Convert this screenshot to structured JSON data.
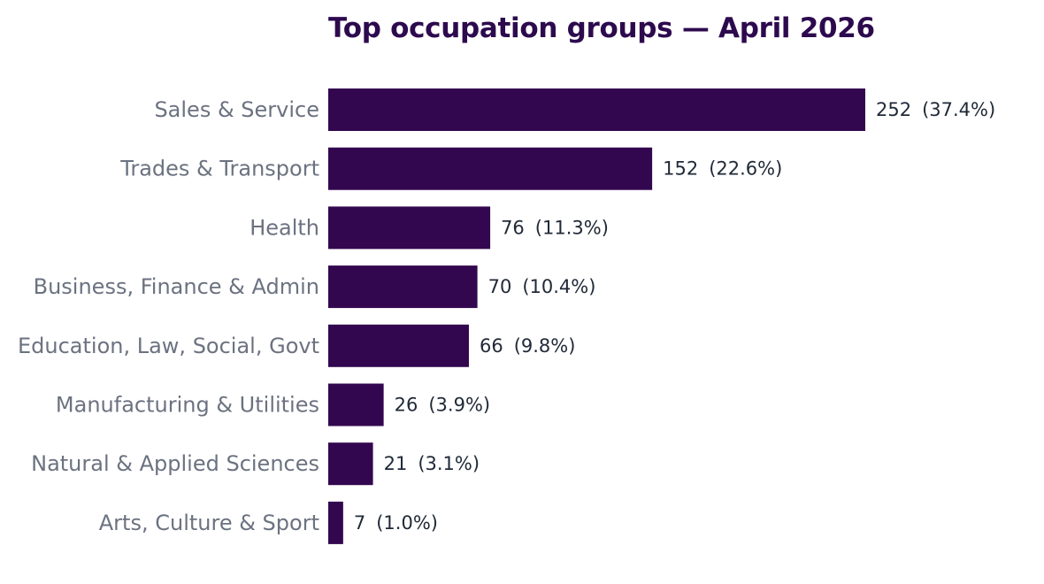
{
  "chart_data": {
    "type": "bar",
    "orientation": "horizontal",
    "title": "Top occupation groups — April 2026",
    "categories": [
      "Sales & Service",
      "Trades & Transport",
      "Health",
      "Business, Finance & Admin",
      "Education, Law, Social, Govt",
      "Manufacturing & Utilities",
      "Natural & Applied Sciences",
      "Arts, Culture & Sport"
    ],
    "values": [
      252,
      152,
      76,
      70,
      66,
      26,
      21,
      7
    ],
    "percent_labels": [
      "(37.4%)",
      "(22.6%)",
      "(11.3%)",
      "(10.4%)",
      "(9.8%)",
      "(3.9%)",
      "(3.1%)",
      "(1.0%)"
    ],
    "bar_color": "#33074f",
    "grid": false,
    "legend": "none"
  }
}
